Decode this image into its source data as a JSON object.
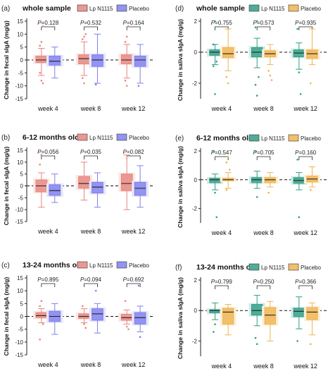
{
  "chart_data": [
    {
      "type": "box",
      "panel_label": "(a)",
      "title": "whole sample",
      "ylabel": "Change in fecal sIgA (mg/g)",
      "ylim": [
        -15,
        15
      ],
      "yticks": [
        -15,
        -10,
        -5,
        0,
        5,
        10,
        15
      ],
      "categories": [
        "week 4",
        "week 8",
        "week 12"
      ],
      "series": [
        {
          "name": "Lp N1115",
          "color": "#e8867e",
          "boxes": [
            {
              "min": -6,
              "q1": -1,
              "median": 0,
              "q3": 1.5,
              "max": 4.5,
              "outliers": [
                5.5,
                7,
                13,
                -5,
                -8,
                -9
              ]
            },
            {
              "min": -6,
              "q1": -1.5,
              "median": 0.5,
              "q3": 2,
              "max": 7,
              "outliers": [
                8,
                9,
                10,
                -7,
                -9
              ]
            },
            {
              "min": -7,
              "q1": -1.5,
              "median": 0,
              "q3": 2,
              "max": 6,
              "outliers": [
                7,
                9,
                13,
                -8,
                -10
              ]
            }
          ]
        },
        {
          "name": "Placebo",
          "color": "#8080ee",
          "boxes": [
            {
              "min": -7,
              "q1": -2,
              "median": -0.5,
              "q3": 1.5,
              "max": 5,
              "outliers": []
            },
            {
              "min": -9,
              "q1": -2.5,
              "median": 0,
              "q3": 2,
              "max": 10,
              "outliers": [
                -9.5
              ]
            },
            {
              "min": -9,
              "q1": -2.5,
              "median": 0,
              "q3": 1.5,
              "max": 6,
              "outliers": [
                -10
              ]
            }
          ]
        }
      ],
      "pvalues": [
        "P=0.128",
        "P=0.532",
        "P=0.164"
      ]
    },
    {
      "type": "box",
      "panel_label": "(b)",
      "title": "6-12 months old",
      "ylabel": "Change in fecal sIgA (mg/g)",
      "ylim": [
        -15,
        15
      ],
      "yticks": [
        -15,
        -10,
        -5,
        0,
        5,
        10,
        15
      ],
      "categories": [
        "week 4",
        "week 8",
        "week 12"
      ],
      "series": [
        {
          "name": "Lp N1115",
          "color": "#e8867e",
          "boxes": [
            {
              "min": -9,
              "q1": -2.5,
              "median": 0,
              "q3": 2.5,
              "max": 5.5,
              "outliers": [
                9,
                13
              ]
            },
            {
              "min": -6,
              "q1": -1,
              "median": 1,
              "q3": 4,
              "max": 10,
              "outliers": []
            },
            {
              "min": -10,
              "q1": -2,
              "median": 1,
              "q3": 5,
              "max": 13,
              "outliers": []
            }
          ]
        },
        {
          "name": "Placebo",
          "color": "#8080ee",
          "boxes": [
            {
              "min": -7,
              "q1": -4,
              "median": -2,
              "q3": 0.5,
              "max": 5,
              "outliers": []
            },
            {
              "min": -9,
              "q1": -3,
              "median": -0.5,
              "q3": 1.5,
              "max": 5.5,
              "outliers": []
            },
            {
              "min": -9,
              "q1": -4,
              "median": -1,
              "q3": 1.5,
              "max": 8.5,
              "outliers": []
            }
          ]
        }
      ],
      "pvalues": [
        "P=0.056",
        "P=0.035",
        "P=0.082"
      ]
    },
    {
      "type": "box",
      "panel_label": "(c)",
      "title": "13-24 months old",
      "ylabel": "Change in fecal sIgA (mg/g)",
      "ylim": [
        -15,
        15
      ],
      "yticks": [
        -15,
        -10,
        -5,
        0,
        5,
        10,
        15
      ],
      "categories": [
        "week 4",
        "week 8",
        "week 12"
      ],
      "series": [
        {
          "name": "Lp N1115",
          "color": "#e8867e",
          "boxes": [
            {
              "min": -2.5,
              "q1": -0.5,
              "median": 0.3,
              "q3": 1.5,
              "max": 3,
              "outliers": [
                4,
                6,
                -3,
                -9
              ]
            },
            {
              "min": -2.5,
              "q1": -0.8,
              "median": 0,
              "q3": 1,
              "max": 3,
              "outliers": [
                4,
                -3,
                -4.5
              ]
            },
            {
              "min": -3,
              "q1": -1.5,
              "median": -0.5,
              "q3": 0.8,
              "max": 2.5,
              "outliers": [
                6,
                -4,
                -5
              ]
            }
          ]
        },
        {
          "name": "Placebo",
          "color": "#8080ee",
          "boxes": [
            {
              "min": -7,
              "q1": -2,
              "median": 0,
              "q3": 2,
              "max": 5,
              "outliers": []
            },
            {
              "min": -6.5,
              "q1": -1.5,
              "median": 1,
              "q3": 3,
              "max": 5,
              "outliers": [
                10
              ]
            },
            {
              "min": -6,
              "q1": -3,
              "median": -0.5,
              "q3": 1.5,
              "max": 4,
              "outliers": [
                12,
                -8
              ]
            }
          ]
        }
      ],
      "pvalues": [
        "P=0.895",
        "P=0.094",
        "P=0.692"
      ]
    },
    {
      "type": "box",
      "panel_label": "(d)",
      "title": "whole sample",
      "ylabel": "Change in saliva sIgA (mg/g)",
      "ylim": [
        -3,
        2
      ],
      "yticks": [
        -2,
        0,
        2
      ],
      "categories": [
        "week 4",
        "week 8",
        "week 12"
      ],
      "series": [
        {
          "name": "Lp N1115",
          "color": "#2f9e86",
          "boxes": [
            {
              "min": -0.8,
              "q1": -0.2,
              "median": 0,
              "q3": 0.15,
              "max": 0.5,
              "outliers": [
                0.5,
                2.0,
                -0.6,
                -0.9,
                -2.7
              ]
            },
            {
              "min": -1.0,
              "q1": -0.3,
              "median": 0,
              "q3": 0.3,
              "max": 0.9,
              "outliers": [
                1.6,
                2.0,
                -1.6,
                -2.1,
                -2.8
              ]
            },
            {
              "min": -1.1,
              "q1": -0.3,
              "median": -0.05,
              "q3": 0.15,
              "max": 0.6,
              "outliers": [
                1.5,
                -1.3,
                -2.7
              ]
            }
          ]
        },
        {
          "name": "Placebo",
          "color": "#f0b450",
          "boxes": [
            {
              "min": -1.2,
              "q1": -0.35,
              "median": -0.1,
              "q3": 0.3,
              "max": 1.5,
              "outliers": [
                -1.6,
                -2.0
              ]
            },
            {
              "min": -0.8,
              "q1": -0.3,
              "median": -0.1,
              "q3": 0.1,
              "max": 0.5,
              "outliers": [
                -1.2,
                -1.5,
                -1.8
              ]
            },
            {
              "min": -0.8,
              "q1": -0.4,
              "median": -0.1,
              "q3": 0.15,
              "max": 1.5,
              "outliers": [
                -2.0
              ]
            }
          ]
        }
      ],
      "pvalues": [
        "P=0.755",
        "P=0.573",
        "P=0.935"
      ]
    },
    {
      "type": "box",
      "panel_label": "(e)",
      "title": "6-12 months old",
      "ylabel": "Change in saliva sIgA (mg/g)",
      "ylim": [
        -3,
        2
      ],
      "yticks": [
        -2,
        0,
        2
      ],
      "categories": [
        "week 4",
        "week 8",
        "week 12"
      ],
      "series": [
        {
          "name": "Lp N1115",
          "color": "#2f9e86",
          "boxes": [
            {
              "min": -0.7,
              "q1": -0.2,
              "median": 0,
              "q3": 0.1,
              "max": 0.4,
              "outliers": [
                2.0,
                -0.9,
                -2.6
              ]
            },
            {
              "min": -0.6,
              "q1": -0.2,
              "median": 0,
              "q3": 0.15,
              "max": 0.6,
              "outliers": [
                2.0,
                -1.2
              ]
            },
            {
              "min": -0.7,
              "q1": -0.25,
              "median": -0.05,
              "q3": 0.15,
              "max": 0.5,
              "outliers": [
                1.4,
                -2.6
              ]
            }
          ]
        },
        {
          "name": "Placebo",
          "color": "#f0b450",
          "boxes": [
            {
              "min": -0.6,
              "q1": -0.05,
              "median": 0,
              "q3": 0.1,
              "max": 0.5,
              "outliers": [
                1.2,
                1.6,
                0.7,
                -0.7
              ]
            },
            {
              "min": -0.5,
              "q1": -0.2,
              "median": 0,
              "q3": 0.15,
              "max": 0.5,
              "outliers": [
                -0.9
              ]
            },
            {
              "min": -0.5,
              "q1": -0.15,
              "median": 0.05,
              "q3": 0.25,
              "max": 0.9,
              "outliers": [
                -0.7
              ]
            }
          ]
        }
      ],
      "pvalues": [
        "P=0.547",
        "P=0.705",
        "P=0.160"
      ]
    },
    {
      "type": "box",
      "panel_label": "(f)",
      "title": "13-24 months old",
      "ylabel": "Change in saliva sIgA (mg/g)",
      "ylim": [
        -3,
        2
      ],
      "yticks": [
        -2,
        0,
        2
      ],
      "categories": [
        "week 4",
        "week 8",
        "week 12"
      ],
      "series": [
        {
          "name": "Lp N1115",
          "color": "#2f9e86",
          "boxes": [
            {
              "min": -0.6,
              "q1": -0.15,
              "median": 0,
              "q3": 0.05,
              "max": 0.5,
              "outliers": [
                -1.4,
                -0.9
              ]
            },
            {
              "min": -1.0,
              "q1": -0.3,
              "median": 0,
              "q3": 0.4,
              "max": 1.0,
              "outliers": [
                -1.8,
                -2.2
              ]
            },
            {
              "min": -1.2,
              "q1": -0.4,
              "median": -0.05,
              "q3": 0.15,
              "max": 0.9,
              "outliers": [
                -2.0
              ]
            }
          ]
        },
        {
          "name": "Placebo",
          "color": "#f0b450",
          "boxes": [
            {
              "min": -1.6,
              "q1": -0.9,
              "median": -0.1,
              "q3": 0.15,
              "max": 0.4,
              "outliers": []
            },
            {
              "min": -2.0,
              "q1": -0.9,
              "median": -0.3,
              "q3": 0.2,
              "max": 0.6,
              "outliers": []
            },
            {
              "min": -1.6,
              "q1": -0.6,
              "median": -0.1,
              "q3": 0.2,
              "max": 0.5,
              "outliers": [
                -2.2
              ]
            }
          ]
        }
      ],
      "pvalues": [
        "P=0.799",
        "P=0.250",
        "P=0.366"
      ]
    }
  ]
}
